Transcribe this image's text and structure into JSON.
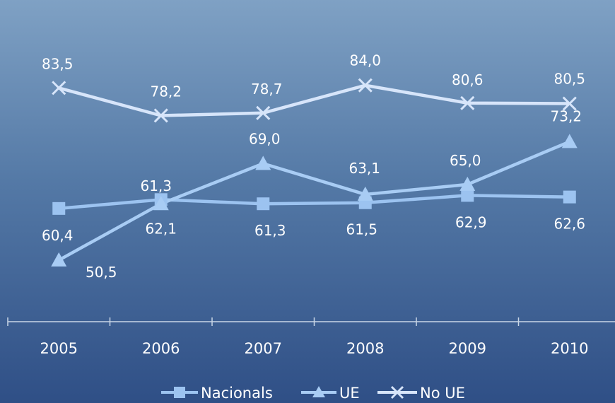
{
  "chart_data": {
    "type": "line",
    "title": "",
    "xlabel": "",
    "ylabel": "",
    "categories": [
      "2005",
      "2006",
      "2007",
      "2008",
      "2009",
      "2010"
    ],
    "ylim": [
      40,
      86
    ],
    "grid": false,
    "legend_position": "bottom",
    "series": [
      {
        "name": "Nacionals",
        "marker": "square",
        "color": "#9cc3f0",
        "values": [
          60.4,
          62.1,
          61.3,
          61.5,
          62.9,
          62.6
        ],
        "labels": [
          "60,4",
          "62,1",
          "61,3",
          "61,5",
          "62,9",
          "62,6"
        ]
      },
      {
        "name": "UE",
        "marker": "triangle",
        "color": "#a8ccf4",
        "values": [
          50.5,
          61.3,
          69.0,
          63.1,
          65.0,
          73.2
        ],
        "labels": [
          "50,5",
          "61,3",
          "69,0",
          "63,1",
          "65,0",
          "73,2"
        ]
      },
      {
        "name": "No UE",
        "marker": "x",
        "color": "#d7e5fa",
        "values": [
          83.5,
          78.2,
          78.7,
          84.0,
          80.6,
          80.5
        ],
        "labels": [
          "83,5",
          "78,2",
          "78,7",
          "84,0",
          "80,6",
          "80,5"
        ]
      }
    ]
  }
}
